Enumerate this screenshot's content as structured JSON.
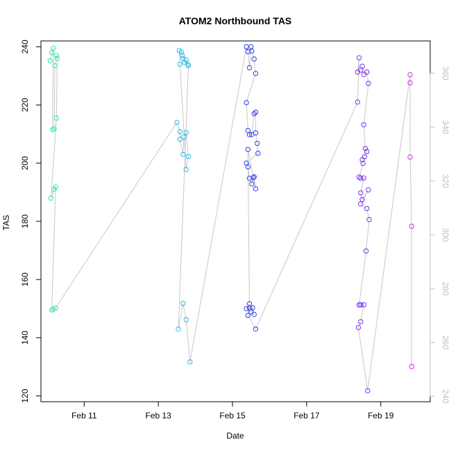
{
  "chart_data": {
    "type": "scatter",
    "title": "ATOM2 Northbound TAS",
    "xlabel": "Date",
    "ylabel": "TAS",
    "xlim": [
      "2022-02-09T20:00",
      "2022-02-20T08:00"
    ],
    "ylim": [
      118,
      242
    ],
    "y2lim": [
      238,
      372
    ],
    "x_ticks": [
      {
        "label": "Feb 11",
        "date": "2022-02-11"
      },
      {
        "label": "Feb 13",
        "date": "2022-02-13"
      },
      {
        "label": "Feb 15",
        "date": "2022-02-15"
      },
      {
        "label": "Feb 17",
        "date": "2022-02-17"
      },
      {
        "label": "Feb 19",
        "date": "2022-02-19"
      }
    ],
    "y_ticks": [
      120,
      140,
      160,
      180,
      200,
      220,
      240
    ],
    "y2_ticks": [
      240,
      260,
      280,
      300,
      320,
      340,
      360
    ],
    "grid": false,
    "line_color": "#c8c8c8",
    "series": [
      {
        "color": "#2de6b2",
        "points": [
          [
            "2022-02-10T02:00",
            235.2
          ],
          [
            "2022-02-10T03:00",
            238.0
          ],
          [
            "2022-02-10T04:00",
            239.5
          ],
          [
            "2022-02-10T03:30",
            211.5
          ],
          [
            "2022-02-10T04:30",
            211.8
          ],
          [
            "2022-02-10T05:00",
            233.5
          ],
          [
            "2022-02-10T06:00",
            237.0
          ],
          [
            "2022-02-10T06:30",
            236.0
          ],
          [
            "2022-02-10T06:00",
            215.5
          ],
          [
            "2022-02-10T02:30",
            188.0
          ],
          [
            "2022-02-10T04:30",
            191.0
          ],
          [
            "2022-02-10T05:30",
            191.8
          ],
          [
            "2022-02-10T03:00",
            149.5
          ],
          [
            "2022-02-10T04:00",
            149.8
          ],
          [
            "2022-02-10T05:30",
            150.2
          ]
        ]
      },
      {
        "color": "#2eb8ea",
        "points": [
          [
            "2022-02-13T12:00",
            214.0
          ],
          [
            "2022-02-13T14:00",
            210.8
          ],
          [
            "2022-02-13T14:00",
            208.2
          ],
          [
            "2022-02-13T16:00",
            203.0
          ],
          [
            "2022-02-13T16:30",
            209.0
          ],
          [
            "2022-02-13T18:00",
            210.5
          ],
          [
            "2022-02-13T19:30",
            202.3
          ],
          [
            "2022-02-13T18:00",
            197.8
          ],
          [
            "2022-02-13T14:00",
            234.0
          ],
          [
            "2022-02-13T13:30",
            238.7
          ],
          [
            "2022-02-13T15:00",
            238.2
          ],
          [
            "2022-02-13T15:30",
            237.0
          ],
          [
            "2022-02-13T16:00",
            236.0
          ],
          [
            "2022-02-13T17:00",
            234.6
          ],
          [
            "2022-02-13T18:00",
            235.5
          ],
          [
            "2022-02-13T19:00",
            234.0
          ],
          [
            "2022-02-13T19:30",
            233.5
          ],
          [
            "2022-02-13T13:00",
            143.0
          ],
          [
            "2022-02-13T16:00",
            151.8
          ],
          [
            "2022-02-13T18:00",
            146.2
          ],
          [
            "2022-02-13T20:30",
            131.7
          ]
        ]
      },
      {
        "color": "#2a3ff0",
        "points": [
          [
            "2022-02-15T09:00",
            240.0
          ],
          [
            "2022-02-15T10:00",
            238.3
          ],
          [
            "2022-02-15T11:00",
            232.8
          ],
          [
            "2022-02-15T12:00",
            240.0
          ],
          [
            "2022-02-15T12:30",
            238.5
          ],
          [
            "2022-02-15T14:00",
            235.8
          ],
          [
            "2022-02-15T15:00",
            230.8
          ],
          [
            "2022-02-15T09:00",
            220.8
          ],
          [
            "2022-02-15T10:00",
            211.2
          ],
          [
            "2022-02-15T11:00",
            209.8
          ],
          [
            "2022-02-15T12:30",
            209.8
          ],
          [
            "2022-02-15T14:00",
            217.0
          ],
          [
            "2022-02-15T15:00",
            217.5
          ],
          [
            "2022-02-15T15:00",
            210.4
          ],
          [
            "2022-02-15T16:00",
            206.8
          ],
          [
            "2022-02-15T16:30",
            203.4
          ],
          [
            "2022-02-15T09:00",
            200.0
          ],
          [
            "2022-02-15T10:00",
            198.7
          ],
          [
            "2022-02-15T11:00",
            194.8
          ],
          [
            "2022-02-15T12:30",
            192.9
          ],
          [
            "2022-02-15T13:30",
            195.0
          ],
          [
            "2022-02-15T14:00",
            195.3
          ],
          [
            "2022-02-15T15:00",
            191.2
          ],
          [
            "2022-02-15T10:00",
            204.7
          ],
          [
            "2022-02-15T11:00",
            150.2
          ],
          [
            "2022-02-15T12:00",
            148.9
          ],
          [
            "2022-02-15T13:00",
            150.3
          ],
          [
            "2022-02-15T14:00",
            148.0
          ],
          [
            "2022-02-15T09:00",
            150.0
          ],
          [
            "2022-02-15T11:00",
            151.7
          ],
          [
            "2022-02-15T10:00",
            147.7
          ],
          [
            "2022-02-15T15:00",
            143.0
          ]
        ]
      },
      {
        "color": "#7a2ef0",
        "points": [
          [
            "2022-02-18T09:00",
            221.0
          ],
          [
            "2022-02-18T10:00",
            236.2
          ],
          [
            "2022-02-18T09:00",
            231.3
          ],
          [
            "2022-02-18T11:00",
            232.0
          ],
          [
            "2022-02-18T12:00",
            233.3
          ],
          [
            "2022-02-18T13:00",
            230.5
          ],
          [
            "2022-02-18T15:00",
            231.3
          ],
          [
            "2022-02-18T16:00",
            227.4
          ],
          [
            "2022-02-18T13:00",
            213.2
          ],
          [
            "2022-02-18T14:00",
            205.0
          ],
          [
            "2022-02-18T15:00",
            204.0
          ],
          [
            "2022-02-18T13:30",
            202.2
          ],
          [
            "2022-02-18T12:00",
            201.2
          ],
          [
            "2022-02-18T12:30",
            199.9
          ],
          [
            "2022-02-18T10:00",
            195.2
          ],
          [
            "2022-02-18T11:00",
            194.8
          ],
          [
            "2022-02-18T13:00",
            194.9
          ],
          [
            "2022-02-18T11:00",
            189.8
          ],
          [
            "2022-02-18T12:00",
            187.5
          ],
          [
            "2022-02-18T16:00",
            190.8
          ],
          [
            "2022-02-18T11:00",
            186.0
          ],
          [
            "2022-02-18T15:00",
            184.4
          ],
          [
            "2022-02-18T16:30",
            180.6
          ],
          [
            "2022-02-18T14:30",
            169.8
          ],
          [
            "2022-02-18T10:00",
            151.3
          ],
          [
            "2022-02-18T11:00",
            151.3
          ],
          [
            "2022-02-18T13:00",
            151.3
          ],
          [
            "2022-02-18T11:00",
            145.5
          ],
          [
            "2022-02-18T09:30",
            143.5
          ],
          [
            "2022-02-18T15:30",
            121.8
          ]
        ]
      },
      {
        "color": "#d42ee6",
        "points": [
          [
            "2022-02-19T19:00",
            230.4
          ],
          [
            "2022-02-19T19:00",
            227.6
          ],
          [
            "2022-02-19T19:00",
            202.1
          ],
          [
            "2022-02-19T20:00",
            178.3
          ],
          [
            "2022-02-19T20:00",
            130.1
          ]
        ]
      }
    ]
  }
}
